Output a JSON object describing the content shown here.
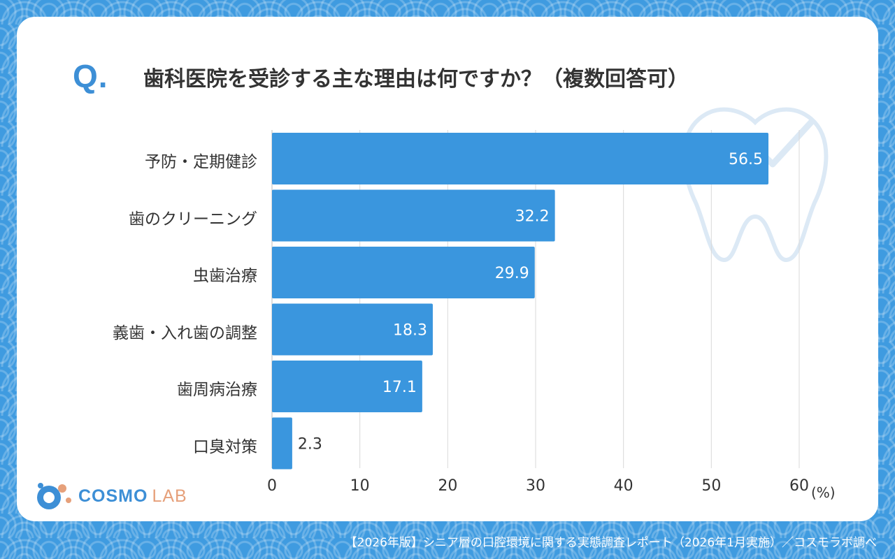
{
  "question": {
    "mark": "Q.",
    "text": "歯科医院を受診する主な理由は何ですか？（複数回答可）"
  },
  "chart_data": {
    "type": "bar",
    "orientation": "horizontal",
    "title": "歯科医院を受診する主な理由は何ですか？（複数回答可）",
    "categories": [
      "予防・定期健診",
      "歯のクリーニング",
      "虫歯治療",
      "義歯・入れ歯の調整",
      "歯周病治療",
      "口臭対策"
    ],
    "values": [
      56.5,
      32.2,
      29.9,
      18.3,
      17.1,
      2.3
    ],
    "xlim": [
      0,
      60
    ],
    "ticks": [
      0,
      10,
      20,
      30,
      40,
      50,
      60
    ],
    "unit_label": "(%)",
    "grid": true,
    "bar_color": "#3a96de"
  },
  "logo": {
    "main": "COSMO",
    "sub": "LAB"
  },
  "footer": "【2026年版】シニア層の口腔環境に関する実態調査レポート（2026年1月実施）／コスモラボ調べ",
  "colors": {
    "accent": "#3d8fd6",
    "background": "#3f9be0",
    "logo_sub": "#e6a07a"
  },
  "icons": [
    "tooth-check-icon",
    "logo-mark-icon"
  ]
}
